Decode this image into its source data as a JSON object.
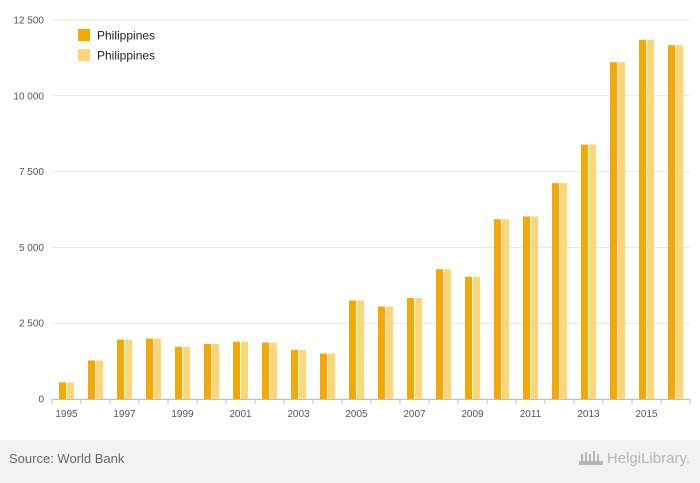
{
  "chart_data": {
    "type": "bar",
    "title": "",
    "xlabel": "",
    "ylabel": "",
    "categories": [
      "1995",
      "1996",
      "1997",
      "1998",
      "1999",
      "2000",
      "2001",
      "2002",
      "2003",
      "2004",
      "2005",
      "2006",
      "2007",
      "2008",
      "2009",
      "2010",
      "2011",
      "2012",
      "2013",
      "2014",
      "2015",
      "2016"
    ],
    "x_tick_labels": [
      "1995",
      "1997",
      "1999",
      "2001",
      "2003",
      "2005",
      "2007",
      "2009",
      "2011",
      "2013",
      "2015"
    ],
    "y_ticks": [
      0,
      2500,
      5000,
      7500,
      10000,
      12500
    ],
    "y_tick_labels": [
      "0",
      "2 500",
      "5 000",
      "7 500",
      "10 000",
      "12 500"
    ],
    "ylim": [
      0,
      12500
    ],
    "grid": true,
    "legend_position": "top-left",
    "series": [
      {
        "name": "Philippines",
        "color": "#f5a800",
        "values": [
          550,
          1270,
          1960,
          1990,
          1720,
          1820,
          1890,
          1860,
          1620,
          1500,
          3250,
          3050,
          3330,
          4280,
          4030,
          5930,
          6020,
          7120,
          8390,
          11110,
          11850,
          11670
        ]
      },
      {
        "name": "Philippines",
        "color": "#fdd67a",
        "values": [
          550,
          1270,
          1960,
          1990,
          1720,
          1820,
          1890,
          1860,
          1620,
          1500,
          3250,
          3050,
          3330,
          4280,
          4030,
          5930,
          6020,
          7120,
          8390,
          11110,
          11850,
          11670
        ]
      }
    ]
  },
  "footer": {
    "source_text": "Source: World Bank",
    "logo_text": "HelgiLibrary."
  },
  "icons": {
    "logo": "helgi-library-logo-icon"
  }
}
